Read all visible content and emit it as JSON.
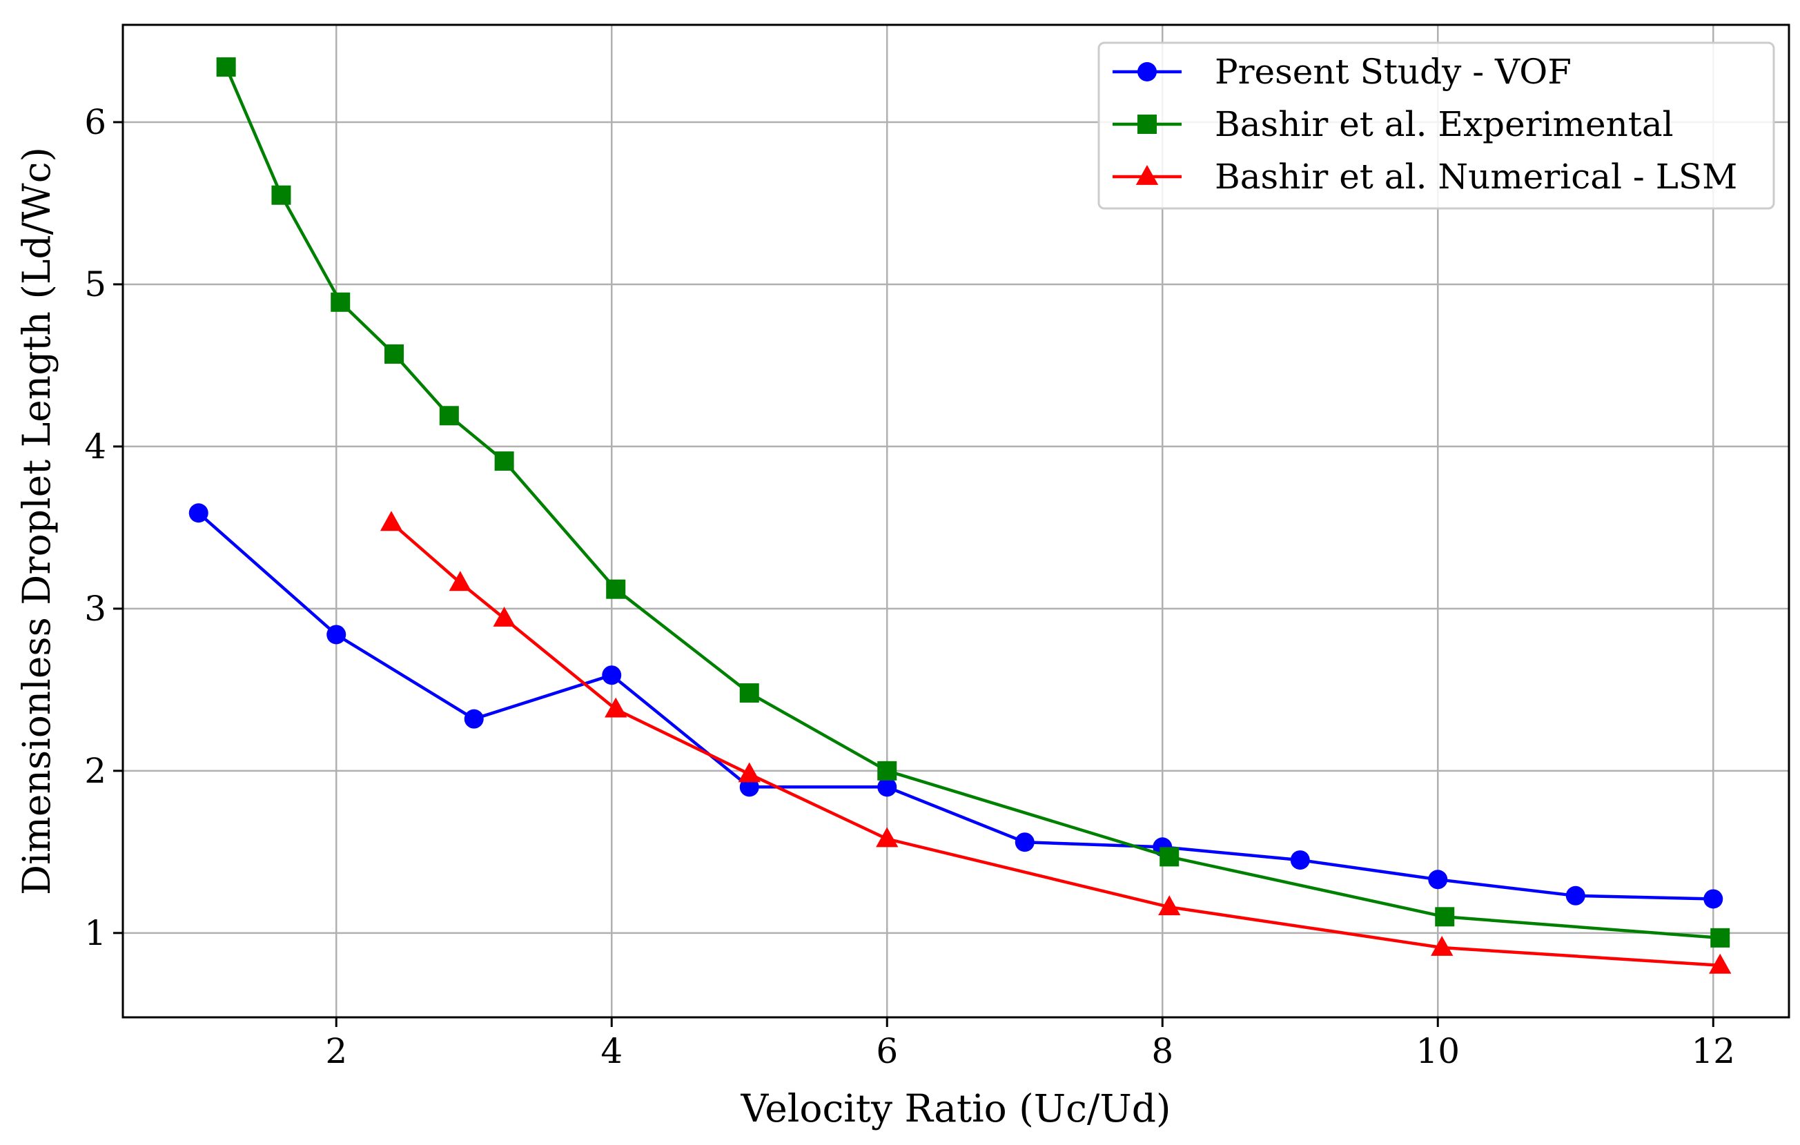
{
  "chart_data": {
    "type": "line",
    "title": "",
    "xlabel": "Velocity Ratio (Uc/Ud)",
    "ylabel": "Dimensionless Droplet Length (Ld/Wc)",
    "xlim": [
      0.45,
      12.55
    ],
    "ylim": [
      0.48,
      6.6
    ],
    "xticks": [
      2,
      4,
      6,
      8,
      10,
      12
    ],
    "yticks": [
      1,
      2,
      3,
      4,
      5,
      6
    ],
    "grid": true,
    "legend_position": "top-right",
    "series": [
      {
        "name": "Present Study - VOF",
        "color": "#0000ff",
        "marker": "circle",
        "x": [
          1,
          2,
          3,
          4,
          5,
          6,
          7,
          8,
          9,
          10,
          11,
          12
        ],
        "y": [
          3.59,
          2.84,
          2.32,
          2.59,
          1.9,
          1.9,
          1.56,
          1.53,
          1.45,
          1.33,
          1.23,
          1.21
        ]
      },
      {
        "name": "Bashir et al. Experimental",
        "color": "#008000",
        "marker": "square",
        "x": [
          1.2,
          1.6,
          2.03,
          2.42,
          2.82,
          3.22,
          4.03,
          5.0,
          6.0,
          8.05,
          10.05,
          12.05
        ],
        "y": [
          6.34,
          5.55,
          4.89,
          4.57,
          4.19,
          3.91,
          3.12,
          2.48,
          2.0,
          1.47,
          1.1,
          0.97
        ]
      },
      {
        "name": "Bashir et al. Numerical - LSM",
        "color": "#ff0000",
        "marker": "triangle",
        "x": [
          2.4,
          2.9,
          3.22,
          4.03,
          5.0,
          6.0,
          8.05,
          10.03,
          12.05
        ],
        "y": [
          3.53,
          3.16,
          2.94,
          2.38,
          1.98,
          1.58,
          1.16,
          0.91,
          0.8
        ]
      }
    ]
  }
}
